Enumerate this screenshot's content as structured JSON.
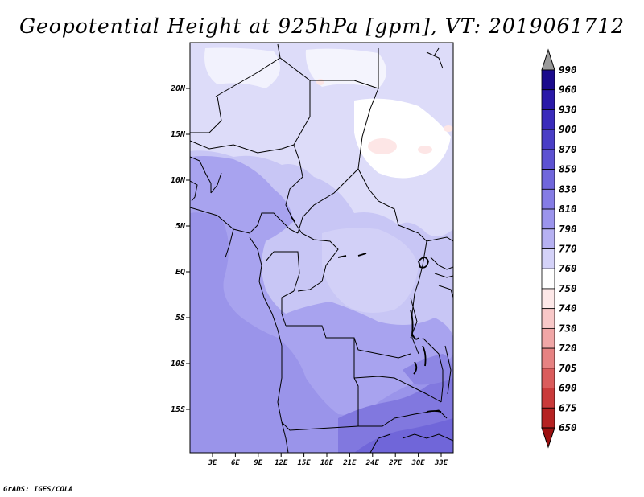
{
  "title": "Geopotential Height at 925hPa [gpm], VT: 2019061712",
  "credit": "GrADS: IGES/COLA",
  "map": {
    "lat_labels": [
      "20N",
      "15N",
      "10N",
      "5N",
      "EQ",
      "5S",
      "10S",
      "15S"
    ],
    "lon_labels": [
      "3E",
      "6E",
      "9E",
      "12E",
      "15E",
      "18E",
      "21E",
      "24E",
      "27E",
      "30E",
      "33E"
    ]
  },
  "colorbar": {
    "levels": [
      "990",
      "960",
      "930",
      "900",
      "870",
      "850",
      "830",
      "810",
      "790",
      "770",
      "760",
      "750",
      "740",
      "730",
      "720",
      "705",
      "690",
      "675",
      "650"
    ],
    "colors": [
      "#1a0a8c",
      "#2a19a8",
      "#3a2bbb",
      "#4a3ec6",
      "#5d52d2",
      "#7066dc",
      "#857ce5",
      "#9b94ec",
      "#b6b1f2",
      "#d4d2f8",
      "#ffffff",
      "#fde8e8",
      "#f8c8c8",
      "#f0a6a6",
      "#e68282",
      "#da5c5c",
      "#c93a3a",
      "#b52222",
      "#9c0f0f"
    ]
  }
}
